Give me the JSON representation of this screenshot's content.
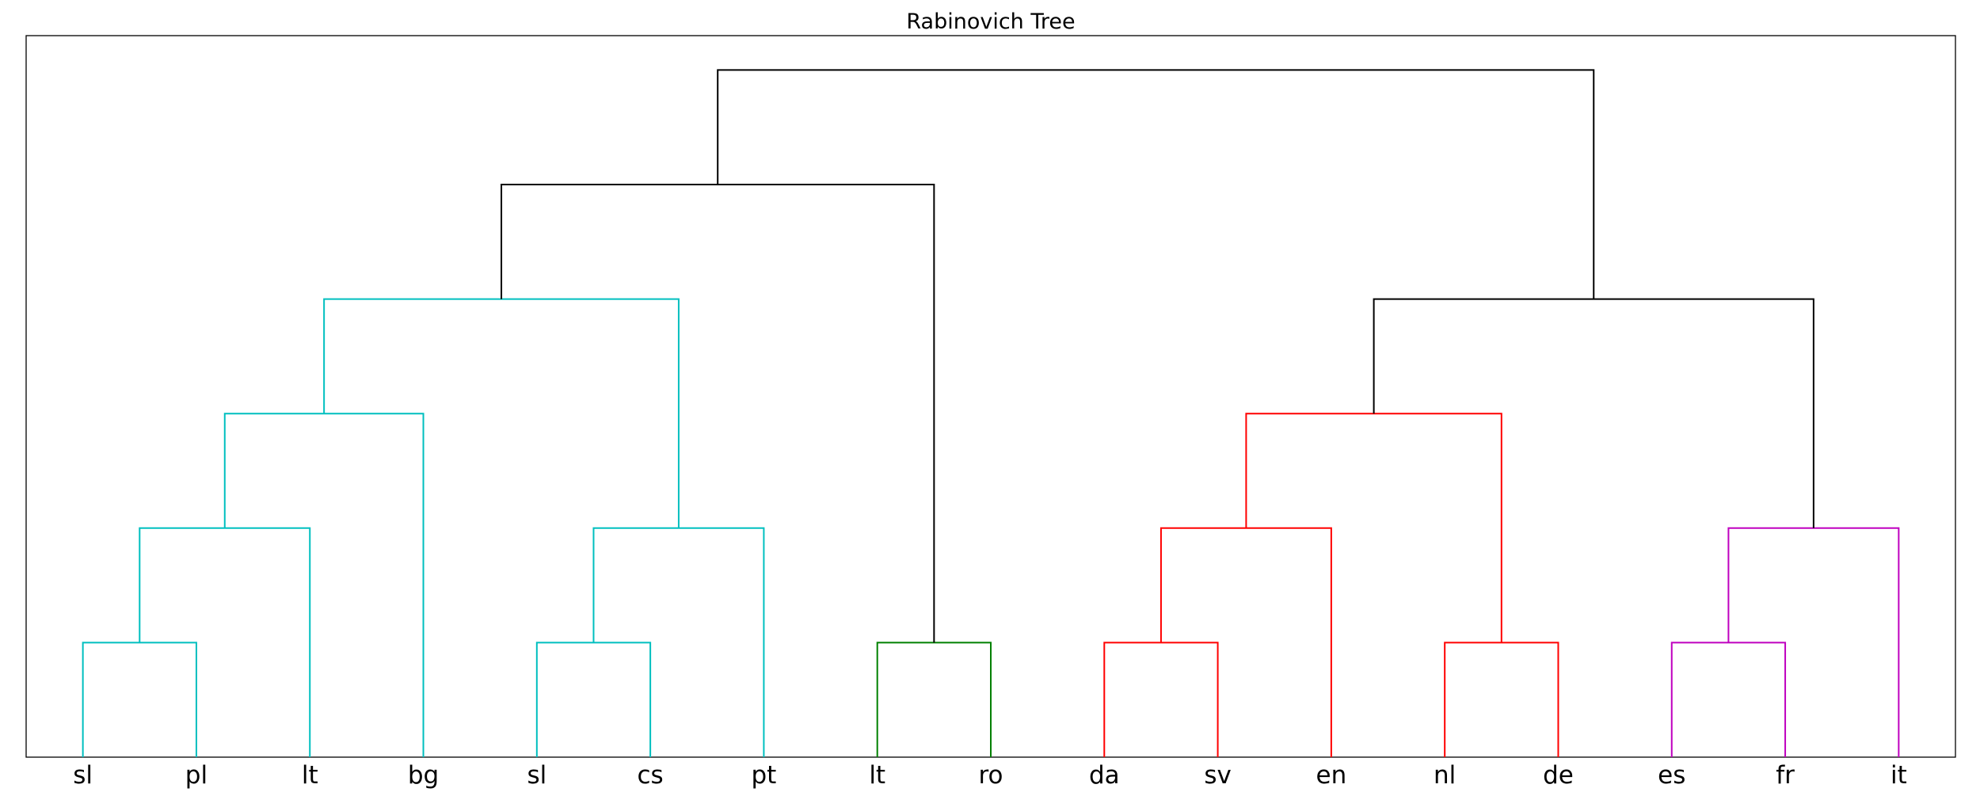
{
  "chart_data": {
    "type": "dendrogram",
    "title": "Rabinovich Tree",
    "leaves": [
      "sl",
      "pl",
      "lt",
      "bg",
      "sl",
      "cs",
      "pt",
      "lt",
      "ro",
      "da",
      "sv",
      "en",
      "nl",
      "de",
      "es",
      "fr",
      "it"
    ],
    "ylim": [
      0,
      6.3
    ],
    "grid": false,
    "colors": {
      "cyan": "#00bfbf",
      "green": "#008000",
      "red": "#ff0000",
      "magenta": "#bf00bf",
      "black": "#000000"
    },
    "merges": [
      {
        "left": 0,
        "right": 1,
        "height": 1,
        "color": "cyan"
      },
      {
        "left": 4,
        "right": 5,
        "height": 1,
        "color": "cyan"
      },
      {
        "left": 7,
        "right": 8,
        "height": 1,
        "color": "green"
      },
      {
        "left": 9,
        "right": 10,
        "height": 1,
        "color": "red"
      },
      {
        "left": 12,
        "right": 13,
        "height": 1,
        "color": "red"
      },
      {
        "left": 14,
        "right": 15,
        "height": 1,
        "color": "magenta"
      },
      {
        "left": 17,
        "right": 2,
        "height": 2,
        "color": "cyan"
      },
      {
        "left": 18,
        "right": 6,
        "height": 2,
        "color": "cyan"
      },
      {
        "left": 20,
        "right": 11,
        "height": 2,
        "color": "red"
      },
      {
        "left": 22,
        "right": 16,
        "height": 2,
        "color": "magenta"
      },
      {
        "left": 23,
        "right": 3,
        "height": 3,
        "color": "cyan"
      },
      {
        "left": 25,
        "right": 21,
        "height": 3,
        "color": "red"
      },
      {
        "left": 27,
        "right": 24,
        "height": 4,
        "color": "cyan"
      },
      {
        "left": 28,
        "right": 26,
        "height": 4,
        "color": "black"
      },
      {
        "left": 29,
        "right": 19,
        "height": 5,
        "color": "black"
      },
      {
        "left": 31,
        "right": 30,
        "height": 6,
        "color": "black"
      }
    ]
  }
}
